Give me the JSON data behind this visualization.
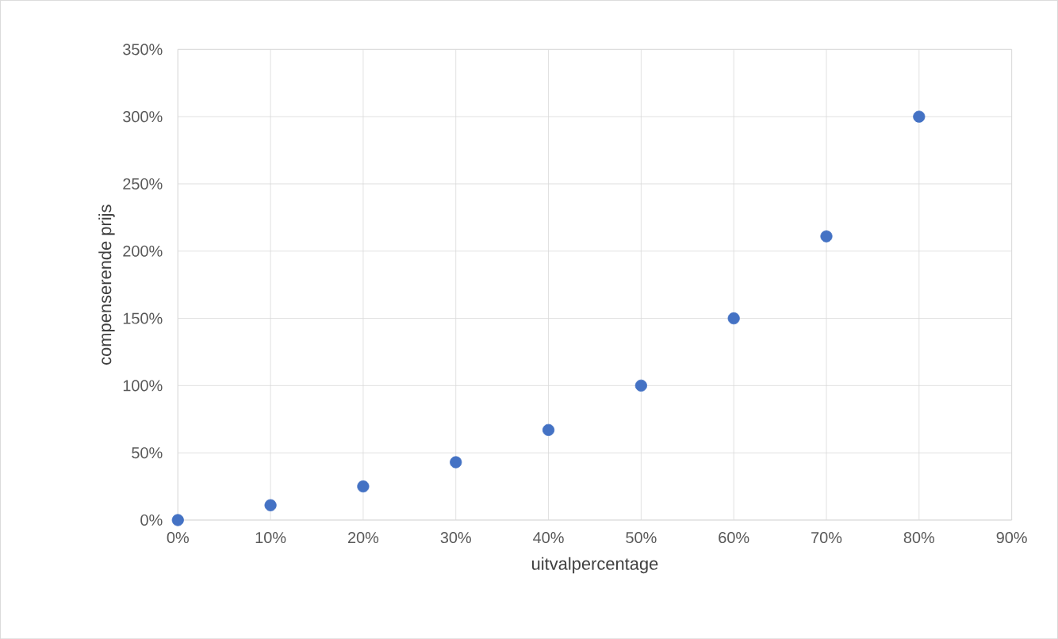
{
  "chart_data": {
    "type": "scatter",
    "xlabel": "uitvalpercentage",
    "ylabel": "compenserende prijs",
    "x": [
      0,
      10,
      20,
      30,
      40,
      50,
      60,
      70,
      80
    ],
    "series": [
      {
        "color": "#4472c4",
        "values": [
          0,
          11,
          25,
          43,
          67,
          100,
          150,
          211,
          300
        ]
      }
    ],
    "xlim": [
      0,
      90
    ],
    "ylim": [
      0,
      350
    ],
    "xticks": [
      {
        "value": 0,
        "label": "0%"
      },
      {
        "value": 10,
        "label": "10%"
      },
      {
        "value": 20,
        "label": "20%"
      },
      {
        "value": 30,
        "label": "30%"
      },
      {
        "value": 40,
        "label": "40%"
      },
      {
        "value": 50,
        "label": "50%"
      },
      {
        "value": 60,
        "label": "60%"
      },
      {
        "value": 70,
        "label": "70%"
      },
      {
        "value": 80,
        "label": "80%"
      },
      {
        "value": 90,
        "label": "90%"
      }
    ],
    "yticks": [
      {
        "value": 0,
        "label": "0%"
      },
      {
        "value": 50,
        "label": "50%"
      },
      {
        "value": 100,
        "label": "100%"
      },
      {
        "value": 150,
        "label": "150%"
      },
      {
        "value": 200,
        "label": "200%"
      },
      {
        "value": 250,
        "label": "250%"
      },
      {
        "value": 300,
        "label": "300%"
      },
      {
        "value": 350,
        "label": "350%"
      }
    ],
    "grid": true,
    "marker": "circle"
  }
}
